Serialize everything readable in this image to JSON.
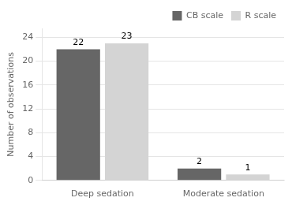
{
  "chart_data": {
    "type": "bar",
    "categories": [
      "Deep sedation",
      "Moderate sedation"
    ],
    "series": [
      {
        "name": "CB scale",
        "color": "#666666",
        "values": [
          22,
          2
        ]
      },
      {
        "name": "R scale",
        "color": "#d4d4d4",
        "values": [
          23,
          1
        ]
      }
    ],
    "ylabel": "Number of observations",
    "ylim": [
      0,
      25.5
    ],
    "yticks": [
      0,
      4,
      8,
      12,
      16,
      20,
      24
    ],
    "grid": true,
    "legend": "upper right",
    "data_labels": true
  }
}
